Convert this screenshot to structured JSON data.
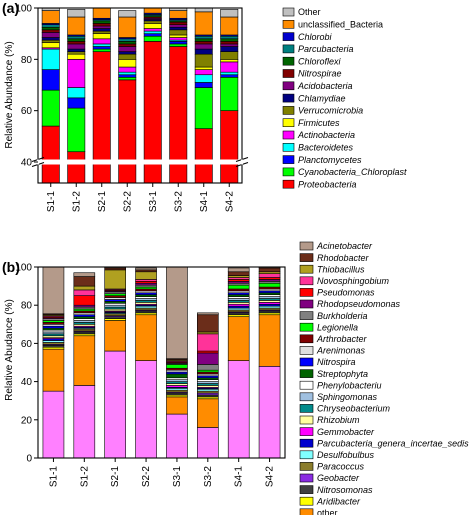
{
  "chart_data": [
    {
      "type": "bar",
      "stacked": true,
      "panel_label": "(a)",
      "categories": [
        "S1-1",
        "S1-2",
        "S2-1",
        "S2-2",
        "S3-1",
        "S3-2",
        "S4-1",
        "S4-2"
      ],
      "ylabel": "Relative Abundance (%)",
      "ylim": [
        0,
        100
      ],
      "axis_break": [
        10,
        40
      ],
      "yticks": [
        40,
        60,
        80,
        100
      ],
      "colors": {
        "Proteobacteria": "#ff0000",
        "Cyanobacteria_Chloroplast": "#00ff00",
        "Planctomycetes": "#0000ff",
        "Bacteroidetes": "#00ffff",
        "Actinobacteria": "#ff00ff",
        "Firmicutes": "#ffff00",
        "Verrucomicrobia": "#808000",
        "Chlamydiae": "#000080",
        "Acidobacteria": "#800080",
        "Nitrospirae": "#800000",
        "Chloroflexi": "#006400",
        "Parcubacteria": "#008080",
        "Chlorobi": "#0000cd",
        "unclassified_Bacteria": "#ff8c00",
        "Other": "#c0c0c0"
      },
      "series": [
        {
          "name": "Proteobacteria",
          "values": [
            54,
            44,
            83,
            72,
            87,
            85,
            53,
            60
          ]
        },
        {
          "name": "Cyanobacteria_Chloroplast",
          "values": [
            14,
            17,
            1,
            1,
            2,
            1,
            16,
            13
          ]
        },
        {
          "name": "Planctomycetes",
          "values": [
            8,
            4,
            1,
            1,
            1,
            1,
            2,
            1
          ]
        },
        {
          "name": "Bacteroidetes",
          "values": [
            8,
            4,
            1,
            1,
            1,
            0.5,
            3,
            1
          ]
        },
        {
          "name": "Actinobacteria",
          "values": [
            0.5,
            11,
            2,
            2,
            1,
            1,
            2,
            4
          ]
        },
        {
          "name": "Firmicutes",
          "values": [
            2,
            2,
            2,
            3,
            2,
            1,
            1,
            1
          ]
        },
        {
          "name": "Verrucomicrobia",
          "values": [
            1,
            1,
            1,
            2,
            1,
            2,
            5,
            3
          ]
        },
        {
          "name": "Chlamydiae",
          "values": [
            1,
            1,
            1,
            1,
            0.5,
            1,
            2,
            2
          ]
        },
        {
          "name": "Acidobacteria",
          "values": [
            2,
            2,
            1,
            2,
            0.5,
            1,
            2,
            1
          ]
        },
        {
          "name": "Nitrospirae",
          "values": [
            1,
            1,
            1,
            1,
            0.5,
            1,
            1,
            1
          ]
        },
        {
          "name": "Chloroflexi",
          "values": [
            1,
            1,
            1,
            1,
            0.5,
            0.5,
            1,
            1
          ]
        },
        {
          "name": "Parcubacteria",
          "values": [
            1,
            1,
            0.5,
            1,
            0.5,
            0.5,
            1,
            1
          ]
        },
        {
          "name": "Chlorobi",
          "values": [
            0.5,
            0.5,
            0.5,
            0.5,
            0.5,
            0.5,
            0.5,
            0.5
          ]
        },
        {
          "name": "unclassified_Bacteria",
          "values": [
            5,
            7,
            5,
            8,
            2,
            3,
            9,
            7
          ]
        },
        {
          "name": "Other",
          "values": [
            1,
            3,
            2.5,
            2.5,
            1,
            1,
            2,
            3
          ]
        }
      ],
      "legend": [
        "Other",
        "unclassified_Bacteria",
        "Chlorobi",
        "Parcubacteria",
        "Chloroflexi",
        "Nitrospirae",
        "Acidobacteria",
        "Chlamydiae",
        "Verrucomicrobia",
        "Firmicutes",
        "Actinobacteria",
        "Bacteroidetes",
        "Planctomycetes",
        "Cyanobacteria_Chloroplast",
        "Proteobacteria"
      ],
      "legend_italic": [
        "Chlorobi",
        "Parcubacteria",
        "Chloroflexi",
        "Nitrospirae",
        "Acidobacteria",
        "Chlamydiae",
        "Verrucomicrobia",
        "Firmicutes",
        "Actinobacteria",
        "Bacteroidetes",
        "Planctomycetes",
        "Cyanobacteria_Chloroplast",
        "Proteobacteria"
      ],
      "legend_placement": "right"
    },
    {
      "type": "bar",
      "stacked": true,
      "panel_label": "(b)",
      "categories": [
        "S1-1",
        "S1-2",
        "S2-1",
        "S2-2",
        "S3-1",
        "S3-2",
        "S4-1",
        "S4-2"
      ],
      "ylabel": "Relative Abudance (%)",
      "ylim": [
        0,
        100
      ],
      "yticks": [
        0,
        20,
        40,
        60,
        80,
        100
      ],
      "colors": {
        "unclassified": "#ff80ff",
        "other": "#ff8c00",
        "Aridibacter": "#ffff00",
        "Nitrosomonas": "#404040",
        "Geobacter": "#8a2be2",
        "Paracoccus": "#8b7d2b",
        "Desulfobulbus": "#80ffff",
        "Parcubacteria_genera_incertae_sedis": "#0000cd",
        "Gemmobacter": "#ff00ff",
        "Rhizobium": "#ffffa0",
        "Chryseobacterium": "#008b8b",
        "Sphingomonas": "#a0c0e0",
        "Phenylobacteriu": "#ffffff",
        "Streptophyta": "#006400",
        "Nitrospira": "#0000ff",
        "Arenimonas": "#e0e0e0",
        "Arthrobacter": "#800000",
        "Legionella": "#00ff00",
        "Burkholderia": "#808080",
        "Rhodopseudomonas": "#800080",
        "Pseudomonas": "#ff0000",
        "Novosphingobium": "#ff3399",
        "Thiobacillus": "#b0a020",
        "Rhodobacter": "#6b2d1a",
        "Acinetobacter": "#b49a8a"
      },
      "series": [
        {
          "name": "unclassified",
          "values": [
            35,
            38,
            56,
            51,
            23,
            16,
            51,
            48
          ]
        },
        {
          "name": "other",
          "values": [
            22,
            26,
            16,
            24,
            9,
            15,
            23,
            27
          ]
        },
        {
          "name": "Aridibacter",
          "values": [
            1,
            1,
            1,
            1,
            1,
            1,
            1,
            1
          ]
        },
        {
          "name": "Nitrosomonas",
          "values": [
            1,
            1,
            1,
            1,
            1,
            1,
            1,
            1
          ]
        },
        {
          "name": "Geobacter",
          "values": [
            0.5,
            0.5,
            0.5,
            0.5,
            0.5,
            1,
            0.5,
            0.5
          ]
        },
        {
          "name": "Paracoccus",
          "values": [
            1,
            1,
            1,
            1,
            1,
            1,
            1,
            1
          ]
        },
        {
          "name": "Desulfobulbus",
          "values": [
            1,
            0.5,
            0.5,
            1,
            1,
            1,
            1,
            1
          ]
        },
        {
          "name": "Parcubacteria_genera_incertae_sedis",
          "values": [
            1,
            0.5,
            0.5,
            0.5,
            0.5,
            0.5,
            1,
            1
          ]
        },
        {
          "name": "Gemmobacter",
          "values": [
            0.5,
            0.5,
            0.5,
            0.5,
            1,
            0.5,
            1,
            1
          ]
        },
        {
          "name": "Rhizobium",
          "values": [
            1,
            1,
            1,
            1,
            1,
            1,
            1,
            1
          ]
        },
        {
          "name": "Chryseobacterium",
          "values": [
            1,
            1,
            1,
            1,
            1,
            1,
            1,
            1
          ]
        },
        {
          "name": "Sphingomonas",
          "values": [
            1,
            1,
            1,
            1,
            1,
            1,
            1,
            1
          ]
        },
        {
          "name": "Phenylobacteriu",
          "values": [
            1,
            1,
            1,
            1,
            1,
            1,
            1,
            1
          ]
        },
        {
          "name": "Streptophyta",
          "values": [
            1,
            1,
            1,
            1,
            2,
            1,
            1,
            1
          ]
        },
        {
          "name": "Nitrospira",
          "values": [
            1,
            1,
            1,
            1,
            1,
            1,
            1,
            1
          ]
        },
        {
          "name": "Arenimonas",
          "values": [
            1,
            1,
            1,
            1,
            1,
            1,
            1,
            1
          ]
        },
        {
          "name": "Arthrobacter",
          "values": [
            1,
            1,
            1,
            1,
            1,
            1,
            1,
            1
          ]
        },
        {
          "name": "Legionella",
          "values": [
            1,
            1,
            1,
            1,
            2,
            1,
            2,
            2
          ]
        },
        {
          "name": "Burkholderia",
          "values": [
            1,
            1,
            1,
            1,
            0.5,
            3,
            1,
            1
          ]
        },
        {
          "name": "Rhodopseudomonas",
          "values": [
            0.5,
            1,
            0.5,
            1,
            0.5,
            6,
            1,
            1
          ]
        },
        {
          "name": "Pseudomonas",
          "values": [
            0.5,
            5,
            0.5,
            1,
            0.5,
            1,
            1,
            1
          ]
        },
        {
          "name": "Novosphingobium",
          "values": [
            0.5,
            3,
            0.5,
            1,
            0.5,
            9,
            1,
            2
          ]
        },
        {
          "name": "Thiobacillus",
          "values": [
            0.5,
            2,
            10,
            4,
            0.5,
            1,
            1,
            1
          ]
        },
        {
          "name": "Rhodobacter",
          "values": [
            0.5,
            5,
            1,
            1,
            0.5,
            9,
            2,
            2
          ]
        },
        {
          "name": "Acinetobacter",
          "values": [
            27,
            2,
            1,
            1,
            51,
            1,
            2,
            1
          ]
        }
      ],
      "legend": [
        "Acinetobacter",
        "Rhodobacter",
        "Thiobacillus",
        "Novosphingobium",
        "Pseudomonas",
        "Rhodopseudomonas",
        "Burkholderia",
        "Legionella",
        "Arthrobacter",
        "Arenimonas",
        "Nitrospira",
        "Streptophyta",
        "Phenylobacteriu",
        "Sphingomonas",
        "Chryseobacterium",
        "Rhizobium",
        "Gemmobacter",
        "Parcubacteria_genera_incertae_sedis",
        "Desulfobulbus",
        "Paracoccus",
        "Geobacter",
        "Nitrosomonas",
        "Aridibacter",
        "other",
        "unclassified"
      ],
      "legend_italic": [
        "Acinetobacter",
        "Rhodobacter",
        "Thiobacillus",
        "Novosphingobium",
        "Pseudomonas",
        "Rhodopseudomonas",
        "Burkholderia",
        "Legionella",
        "Arthrobacter",
        "Arenimonas",
        "Nitrospira",
        "Streptophyta",
        "Phenylobacteriu",
        "Sphingomonas",
        "Chryseobacterium",
        "Rhizobium",
        "Gemmobacter",
        "Parcubacteria_genera_incertae_sedis",
        "Desulfobulbus",
        "Paracoccus",
        "Geobacter",
        "Nitrosomonas",
        "Aridibacter"
      ],
      "legend_placement": "right"
    }
  ]
}
